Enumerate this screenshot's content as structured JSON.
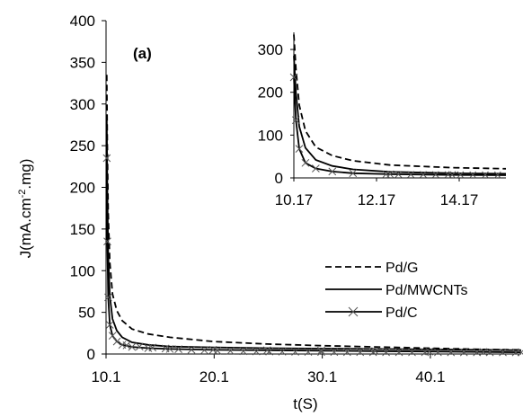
{
  "chart_data": [
    {
      "type": "line",
      "panel_label": "(a)",
      "xlabel": "t(S)",
      "ylabel": "J(mA.cm-2.mg)",
      "ylabel_parts": {
        "main": "J(mA.cm",
        "sup": "-2",
        "tail": ".mg)"
      },
      "xlim": [
        10.1,
        48.5
      ],
      "ylim": [
        0,
        400
      ],
      "x_ticks": [
        "10.1",
        "20.1",
        "30.1",
        "40.1"
      ],
      "y_ticks": [
        "0",
        "50",
        "100",
        "150",
        "200",
        "250",
        "300",
        "350",
        "400"
      ],
      "grid": false,
      "legend_position": "center-right",
      "series": [
        {
          "name": "Pd/G",
          "style": "dashed",
          "marker": "none",
          "x": [
            10.17,
            10.22,
            10.3,
            10.45,
            10.7,
            11.1,
            11.6,
            12.5,
            14,
            16,
            20,
            25,
            30,
            35,
            40,
            45,
            48.5
          ],
          "y": [
            335,
            255,
            170,
            110,
            72,
            52,
            40,
            30,
            24,
            20,
            15,
            12,
            10,
            8.5,
            7,
            5.5,
            5
          ]
        },
        {
          "name": "Pd/MWCNTs",
          "style": "solid",
          "marker": "none",
          "x": [
            10.17,
            10.22,
            10.3,
            10.45,
            10.7,
            11.1,
            11.6,
            12.5,
            14,
            16,
            20,
            25,
            30,
            35,
            40,
            45,
            48.5
          ],
          "y": [
            285,
            200,
            120,
            70,
            42,
            28,
            20,
            14,
            11,
            9,
            8,
            7,
            6.5,
            6,
            5.5,
            5,
            4.5
          ]
        },
        {
          "name": "Pd/C",
          "style": "solid",
          "marker": "x",
          "x": [
            10.17,
            10.22,
            10.3,
            10.45,
            10.7,
            11.1,
            11.6,
            12.5,
            14,
            16,
            20,
            25,
            30,
            35,
            40,
            45,
            48.5
          ],
          "y": [
            235,
            135,
            68,
            35,
            22,
            15,
            11,
            8.5,
            7,
            6,
            5,
            4.5,
            4,
            3.5,
            3,
            2.5,
            2
          ]
        }
      ]
    },
    {
      "type": "line",
      "inset": true,
      "xlim": [
        10.17,
        15.3
      ],
      "ylim": [
        0,
        340
      ],
      "x_ticks": [
        "10.17",
        "12.17",
        "14.17"
      ],
      "y_ticks": [
        "0",
        "100",
        "200",
        "300"
      ],
      "grid": false,
      "series_ref": "same as main panel"
    }
  ]
}
